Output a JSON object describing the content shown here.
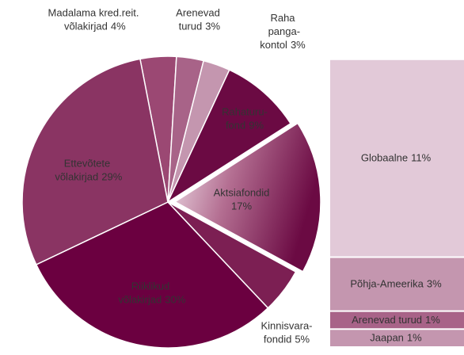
{
  "chart_data": [
    {
      "type": "pie",
      "categories": [
        "Madalama kred.reit. võlakirjad",
        "Arenevad turud",
        "Raha panga-kontol",
        "Rahaturu-fond",
        "Aktsiafondid",
        "Kinnisvara-fondid",
        "Riiklikud võlakirjad",
        "Ettevõtete võlakirjad"
      ],
      "values": [
        4,
        3,
        3,
        9,
        17,
        5,
        30,
        29
      ],
      "value_labels": [
        "4%",
        "3%",
        "3%",
        "9%",
        "17%",
        "5%",
        "30%",
        "29%"
      ],
      "colors": [
        "#9b4873",
        "#a86388",
        "#c496af",
        "#6b0a43",
        "#b0708f",
        "#7c1f53",
        "#6b0040",
        "#8a3463"
      ]
    },
    {
      "type": "stacked-bar",
      "categories": [
        "Globaalne",
        "Põhja-Ameerika",
        "Arenevad turud",
        "Jaapan"
      ],
      "values": [
        11,
        3,
        1,
        1
      ],
      "value_labels": [
        "11%",
        "3%",
        "1%",
        "1%"
      ],
      "colors": [
        "#e2c9d8",
        "#c496af",
        "#a86388",
        "#c496af"
      ]
    }
  ]
}
